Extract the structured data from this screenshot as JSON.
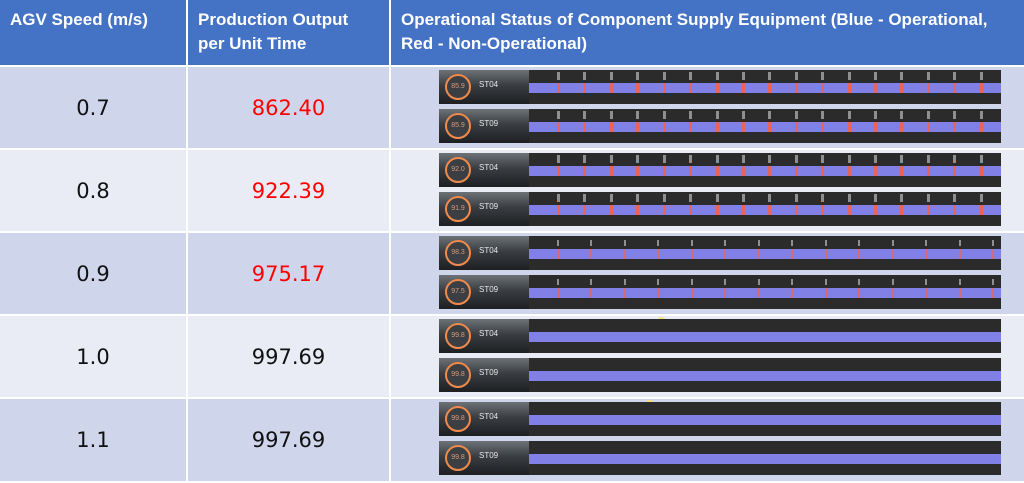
{
  "headers": {
    "speed": "AGV Speed (m/s)",
    "output": "Production Output per Unit Time",
    "status": "Operational Status of Component Supply Equipment (Blue - Operational, Red - Non-Operational)"
  },
  "rows": [
    {
      "speed": "0.7",
      "output": "862.40",
      "output_highlight": true,
      "tracks": [
        {
          "gauge": "85.9",
          "station": "ST04"
        },
        {
          "gauge": "85.9",
          "station": "ST09"
        }
      ]
    },
    {
      "speed": "0.8",
      "output": "922.39",
      "output_highlight": true,
      "tracks": [
        {
          "gauge": "92.0",
          "station": "ST04"
        },
        {
          "gauge": "91.9",
          "station": "ST09"
        }
      ]
    },
    {
      "speed": "0.9",
      "output": "975.17",
      "output_highlight": true,
      "tracks": [
        {
          "gauge": "98.3",
          "station": "ST04"
        },
        {
          "gauge": "97.5",
          "station": "ST09"
        }
      ]
    },
    {
      "speed": "1.0",
      "output": "997.69",
      "output_highlight": false,
      "tracks": [
        {
          "gauge": "99.8",
          "station": "ST04"
        },
        {
          "gauge": "99.8",
          "station": "ST09"
        }
      ]
    },
    {
      "speed": "1.1",
      "output": "997.69",
      "output_highlight": false,
      "tracks": [
        {
          "gauge": "99.8",
          "station": "ST04"
        },
        {
          "gauge": "99.8",
          "station": "ST09"
        }
      ]
    }
  ],
  "colors": {
    "operational": "#8080e6",
    "non_operational": "#e8645a",
    "header": "#4472c4",
    "highlight_text": "#ff0000"
  }
}
